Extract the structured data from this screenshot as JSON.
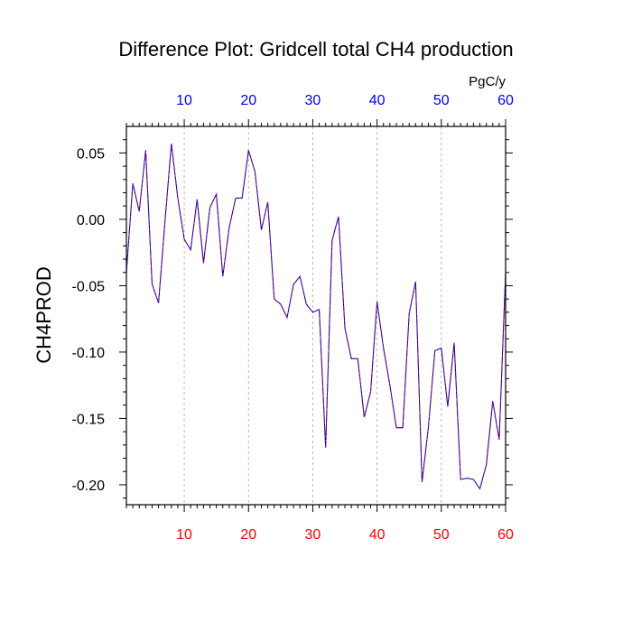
{
  "chart_data": {
    "type": "line",
    "title": "Difference Plot: Gridcell total CH4 production",
    "ylabel": "CH4PROD",
    "top_axis_unit": "PgC/y",
    "xlim": [
      1,
      60
    ],
    "ylim": [
      -0.215,
      0.07
    ],
    "x_ticks": [
      10,
      20,
      30,
      40,
      50,
      60
    ],
    "x_tick_labels": [
      "10",
      "20",
      "30",
      "40",
      "50",
      "60"
    ],
    "y_ticks": [
      0.05,
      0.0,
      -0.05,
      -0.1,
      -0.15,
      -0.2
    ],
    "y_tick_labels": [
      "0.05",
      "0.00",
      "-0.05",
      "-0.10",
      "-0.15",
      "-0.20"
    ],
    "grid": "vertical dashed at major x ticks",
    "colors": {
      "line_solid": "#000000",
      "line_dashed": "#7a00ff",
      "bottom_tick_labels": "#ff0000",
      "top_tick_labels": "#0000ff",
      "grid": "#aaaaaa"
    },
    "x": [
      1,
      2,
      3,
      4,
      5,
      6,
      7,
      8,
      9,
      10,
      11,
      12,
      13,
      14,
      15,
      16,
      17,
      18,
      19,
      20,
      21,
      22,
      23,
      24,
      25,
      26,
      27,
      28,
      29,
      30,
      31,
      32,
      33,
      34,
      35,
      36,
      37,
      38,
      39,
      40,
      41,
      42,
      43,
      44,
      45,
      46,
      47,
      48,
      49,
      50,
      51,
      52,
      53,
      54,
      55,
      56,
      57,
      58,
      59,
      60
    ],
    "series": [
      {
        "values": [
          -0.04,
          0.027,
          0.006,
          0.052,
          -0.049,
          -0.063,
          -0.002,
          0.057,
          0.016,
          -0.015,
          -0.023,
          0.015,
          -0.033,
          0.009,
          0.019,
          -0.043,
          -0.006,
          0.016,
          0.016,
          0.052,
          0.036,
          -0.008,
          0.013,
          -0.06,
          -0.064,
          -0.074,
          -0.049,
          -0.043,
          -0.064,
          -0.07,
          -0.068,
          -0.172,
          -0.016,
          0.002,
          -0.082,
          -0.105,
          -0.105,
          -0.149,
          -0.13,
          -0.062,
          -0.097,
          -0.125,
          -0.157,
          -0.157,
          -0.071,
          -0.047,
          -0.198,
          -0.156,
          -0.099,
          -0.097,
          -0.141,
          -0.093,
          -0.196,
          -0.195,
          -0.196,
          -0.203,
          -0.185,
          -0.137,
          -0.166,
          -0.04
        ]
      }
    ]
  }
}
